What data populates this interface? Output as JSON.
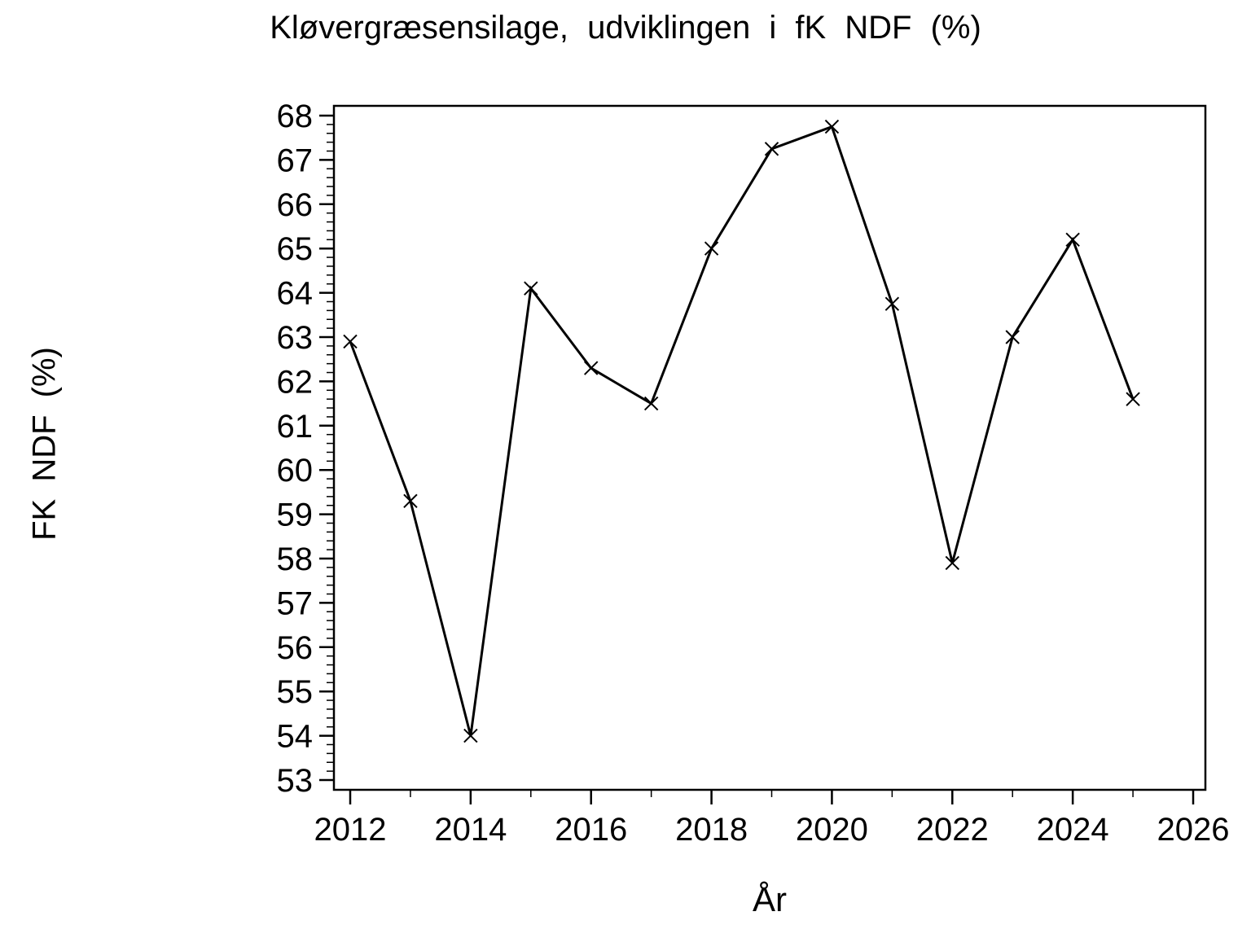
{
  "page": {
    "background": "#ffffff",
    "foreground": "#000000"
  },
  "chart_data": {
    "type": "line",
    "title": "Kløvergræsensilage, udviklingen i fK NDF (%)",
    "xlabel": "År",
    "ylabel": "FK NDF (%)",
    "x": [
      2012,
      2013,
      2014,
      2015,
      2016,
      2017,
      2018,
      2019,
      2020,
      2021,
      2022,
      2023,
      2024,
      2025
    ],
    "values": [
      62.9,
      59.3,
      54.0,
      64.1,
      62.3,
      61.5,
      65.0,
      67.25,
      67.75,
      63.75,
      57.9,
      63.0,
      65.2,
      61.6
    ],
    "x_ticks": [
      2012,
      2014,
      2016,
      2018,
      2020,
      2022,
      2024,
      2026
    ],
    "x_minor_ticks": [
      2013,
      2015,
      2017,
      2019,
      2021,
      2023,
      2025
    ],
    "y_ticks": [
      53,
      54,
      55,
      56,
      57,
      58,
      59,
      60,
      61,
      62,
      63,
      64,
      65,
      66,
      67,
      68
    ],
    "y_minor_step": 0.2,
    "xlim": [
      2011.5,
      2026.5
    ],
    "ylim": [
      53,
      68
    ],
    "marker": "x",
    "line_color": "#000000",
    "grid": false,
    "legend": "none"
  }
}
